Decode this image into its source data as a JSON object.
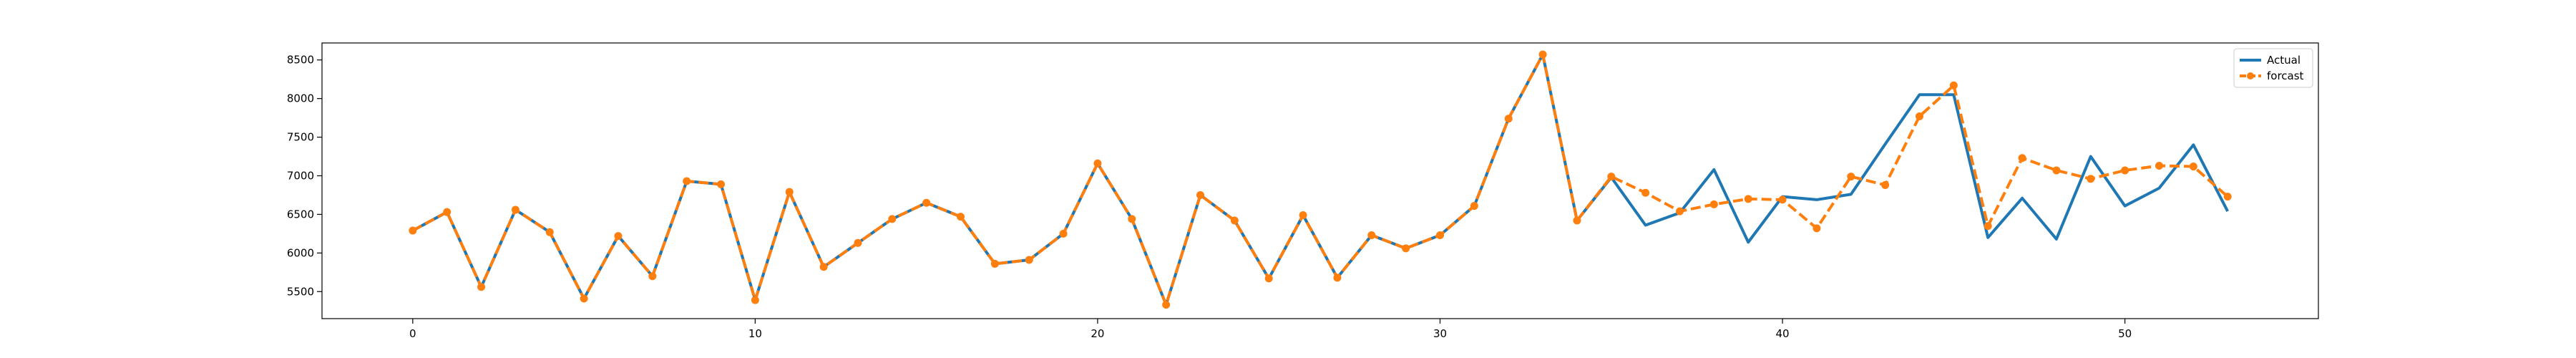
{
  "chart_data": {
    "type": "line",
    "title": "",
    "xlabel": "",
    "ylabel": "",
    "xlim": [
      -2.65,
      55.65
    ],
    "ylim": [
      5150,
      8720
    ],
    "xticks": [
      0,
      10,
      20,
      30,
      40,
      50
    ],
    "yticks": [
      5500,
      6000,
      6500,
      7000,
      7500,
      8000,
      8500
    ],
    "grid": false,
    "legend_position": "top-right",
    "x": [
      0,
      1,
      2,
      3,
      4,
      5,
      6,
      7,
      8,
      9,
      10,
      11,
      12,
      13,
      14,
      15,
      16,
      17,
      18,
      19,
      20,
      21,
      22,
      23,
      24,
      25,
      26,
      27,
      28,
      29,
      30,
      31,
      32,
      33,
      34,
      35,
      36,
      37,
      38,
      39,
      40,
      41,
      42,
      43,
      44,
      45,
      46,
      47,
      48,
      49,
      50,
      51,
      52,
      53
    ],
    "series": [
      {
        "name": "Actual",
        "color": "#1f77b4",
        "style": "solid",
        "values": [
          6290,
          6530,
          5560,
          6560,
          6270,
          5410,
          6220,
          5700,
          6930,
          6890,
          5390,
          6790,
          5820,
          6130,
          6440,
          6650,
          6470,
          5860,
          5910,
          6250,
          7160,
          6440,
          5330,
          6750,
          6420,
          5670,
          6490,
          5680,
          6230,
          6060,
          6230,
          6610,
          7740,
          8570,
          6420,
          6980,
          6360,
          6520,
          7080,
          6140,
          6730,
          6690,
          6760,
          7410,
          8050,
          8050,
          6200,
          6710,
          6180,
          7250,
          6610,
          6840,
          7400,
          6540
        ]
      },
      {
        "name": "forcast",
        "color": "#ff7f0e",
        "style": "dashed-markers",
        "values": [
          6290,
          6530,
          5560,
          6560,
          6270,
          5410,
          6220,
          5700,
          6930,
          6890,
          5390,
          6790,
          5820,
          6130,
          6440,
          6650,
          6470,
          5860,
          5910,
          6250,
          7160,
          6440,
          5330,
          6750,
          6420,
          5670,
          6490,
          5680,
          6230,
          6060,
          6230,
          6610,
          7740,
          8570,
          6420,
          6990,
          6780,
          6540,
          6630,
          6700,
          6690,
          6320,
          6990,
          6880,
          7770,
          8170,
          6350,
          7230,
          7070,
          6960,
          7070,
          7130,
          7120,
          6730
        ]
      }
    ]
  }
}
